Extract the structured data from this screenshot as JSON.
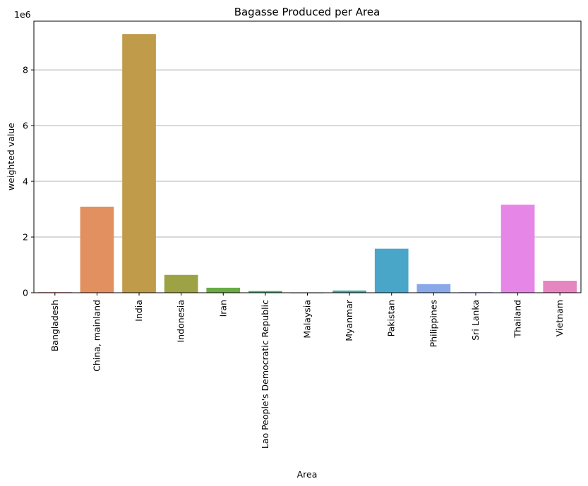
{
  "chart_data": {
    "type": "bar",
    "title": "Bagasse Produced per Area",
    "xlabel": "Area",
    "ylabel": "weighted value",
    "y_scale_label": "1e6",
    "ylim": [
      0,
      9750000
    ],
    "y_ticks": [
      0,
      2000000,
      4000000,
      6000000,
      8000000
    ],
    "y_tick_labels": [
      "0",
      "2",
      "4",
      "6",
      "8"
    ],
    "grid": "y",
    "categories": [
      "Bangladesh",
      "China, mainland",
      "India",
      "Indonesia",
      "Iran",
      "Lao People's Democratic Republic",
      "Malaysia",
      "Myanmar",
      "Pakistan",
      "Philippines",
      "Sri Lanka",
      "Thailand",
      "Vietnam"
    ],
    "values": [
      20000,
      3090000,
      9290000,
      640000,
      180000,
      60000,
      5000,
      80000,
      1580000,
      310000,
      20000,
      3160000,
      430000
    ],
    "colors": [
      "#e0737a",
      "#e39060",
      "#bf9b4a",
      "#9da244",
      "#6aab45",
      "#45aa6b",
      "#45aa8d",
      "#46a99f",
      "#4aa6c8",
      "#8aa8e8",
      "#b49be9",
      "#e686e6",
      "#e586c1"
    ]
  }
}
